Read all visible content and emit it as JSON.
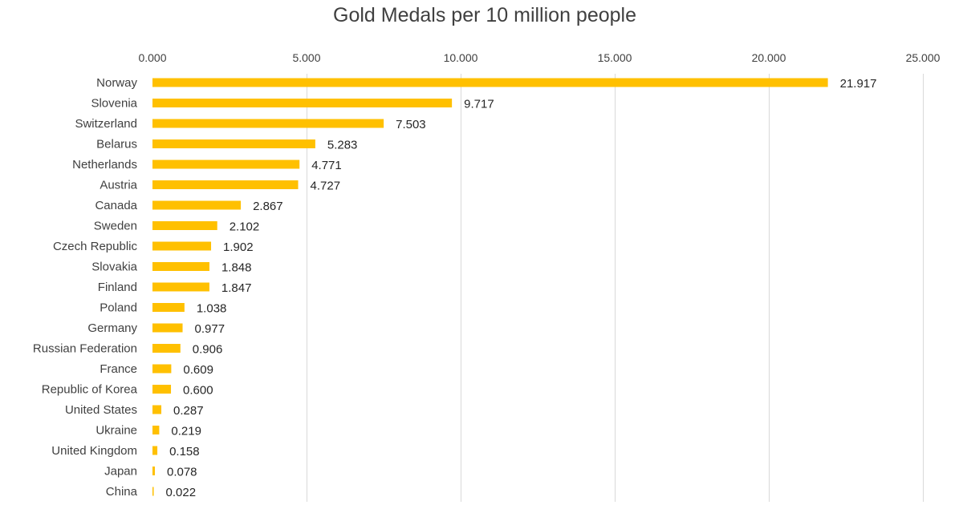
{
  "chart_data": {
    "type": "bar",
    "orientation": "horizontal",
    "title": "Gold Medals per 10 million people",
    "xlabel": "",
    "ylabel": "",
    "xlim": [
      0,
      25
    ],
    "x_ticks": [
      0,
      5,
      10,
      15,
      20,
      25
    ],
    "x_tick_labels": [
      "0.000",
      "5.000",
      "10.000",
      "15.000",
      "20.000",
      "25.000"
    ],
    "x_axis_position": "top",
    "grid": true,
    "legend": "none",
    "bar_color": "#ffc000",
    "categories": [
      "Norway",
      "Slovenia",
      "Switzerland",
      "Belarus",
      "Netherlands",
      "Austria",
      "Canada",
      "Sweden",
      "Czech Republic",
      "Slovakia",
      "Finland",
      "Poland",
      "Germany",
      "Russian Federation",
      "France",
      "Republic of Korea",
      "United States",
      "Ukraine",
      "United Kingdom",
      "Japan",
      "China"
    ],
    "values": [
      21.917,
      9.717,
      7.503,
      5.283,
      4.771,
      4.727,
      2.867,
      2.102,
      1.902,
      1.848,
      1.847,
      1.038,
      0.977,
      0.906,
      0.609,
      0.6,
      0.287,
      0.219,
      0.158,
      0.078,
      0.022
    ],
    "value_labels": [
      "21.917",
      "9.717",
      "7.503",
      "5.283",
      "4.771",
      "4.727",
      "2.867",
      "2.102",
      "1.902",
      "1.848",
      "1.847",
      "1.038",
      "0.977",
      "0.906",
      "0.609",
      "0.600",
      "0.287",
      "0.219",
      "0.158",
      "0.078",
      "0.022"
    ]
  }
}
